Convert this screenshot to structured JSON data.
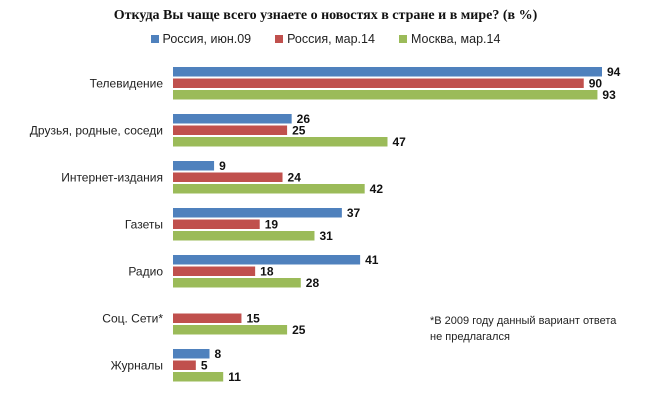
{
  "chart_data": {
    "type": "bar",
    "orientation": "horizontal",
    "title": "Откуда Вы чаще всего узнаете о новостях в стране и в мире? (в %)",
    "categories": [
      "Телевидение",
      "Друзья, родные, соседи",
      "Интернет-издания",
      "Газеты",
      "Радио",
      "Соц. Сети*",
      "Журналы"
    ],
    "series": [
      {
        "name": "Россия, июн.09",
        "color": "#4f81bd",
        "values": [
          94,
          26,
          9,
          37,
          41,
          null,
          8
        ]
      },
      {
        "name": "Россия, мар.14",
        "color": "#c0504d",
        "values": [
          90,
          25,
          24,
          19,
          18,
          15,
          5
        ]
      },
      {
        "name": "Москва, мар.14",
        "color": "#9bbb59",
        "values": [
          93,
          47,
          42,
          31,
          28,
          25,
          11
        ]
      }
    ],
    "xlim": [
      0,
      100
    ],
    "grid": false,
    "legend_position": "top",
    "annotation": [
      "*В 2009 году данный вариант ответа",
      "не предлагался"
    ]
  }
}
